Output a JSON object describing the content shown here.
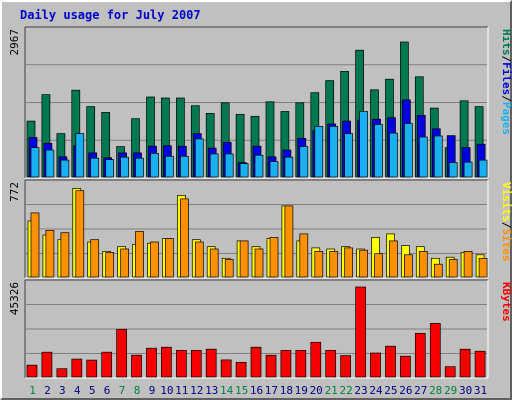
{
  "title": "Daily usage for July 2007",
  "colors": {
    "hits": "#007850",
    "files": "#0000e0",
    "pages": "#18b0f0",
    "visits": "#ffff00",
    "sites": "#ff9000",
    "kbytes": "#f80000",
    "weekend_day": "#008040",
    "weekday": "#000080"
  },
  "chart_data": [
    {
      "type": "bar",
      "name": "hits-files-pages",
      "categories": [
        "1",
        "2",
        "3",
        "4",
        "5",
        "6",
        "7",
        "8",
        "9",
        "10",
        "11",
        "12",
        "13",
        "14",
        "15",
        "16",
        "17",
        "18",
        "19",
        "20",
        "21",
        "22",
        "23",
        "24",
        "25",
        "26",
        "27",
        "28",
        "29",
        "30",
        "31"
      ],
      "weekend_days": [
        "1",
        "7",
        "8",
        "14",
        "15",
        "21",
        "22",
        "28",
        "29"
      ],
      "ymax_label": "2967",
      "ylim": [
        0,
        2967
      ],
      "grid": true,
      "series": [
        {
          "name": "Hits",
          "values": [
            1160,
            1710,
            900,
            1800,
            1460,
            1340,
            630,
            1210,
            1660,
            1640,
            1640,
            1480,
            1320,
            1540,
            1300,
            1260,
            1560,
            1360,
            1540,
            1750,
            2000,
            2190,
            2630,
            1810,
            2030,
            2800,
            2080,
            1430,
            610,
            1580,
            1460
          ]
        },
        {
          "name": "Files",
          "values": [
            820,
            700,
            420,
            650,
            500,
            400,
            500,
            500,
            640,
            650,
            640,
            900,
            600,
            720,
            300,
            640,
            420,
            560,
            800,
            960,
            1100,
            1160,
            1180,
            1200,
            1230,
            1600,
            1280,
            1000,
            860,
            610,
            680
          ]
        },
        {
          "name": "Pages",
          "values": [
            610,
            560,
            350,
            900,
            390,
            360,
            410,
            390,
            490,
            430,
            430,
            790,
            480,
            480,
            280,
            450,
            320,
            410,
            630,
            1050,
            1050,
            900,
            1360,
            1090,
            910,
            1110,
            830,
            850,
            300,
            310,
            350
          ]
        }
      ],
      "side_labels": [
        "Pages",
        "Files",
        "Hits"
      ]
    },
    {
      "type": "bar",
      "name": "visits-sites",
      "categories": [
        "1",
        "2",
        "3",
        "4",
        "5",
        "6",
        "7",
        "8",
        "9",
        "10",
        "11",
        "12",
        "13",
        "14",
        "15",
        "16",
        "17",
        "18",
        "19",
        "20",
        "21",
        "22",
        "23",
        "24",
        "25",
        "26",
        "27",
        "28",
        "29",
        "30",
        "31"
      ],
      "ymax_label": "772",
      "ylim": [
        0,
        772
      ],
      "grid": true,
      "series": [
        {
          "name": "Visits",
          "values": [
            480,
            360,
            320,
            760,
            300,
            220,
            260,
            280,
            290,
            330,
            700,
            320,
            260,
            160,
            310,
            260,
            330,
            610,
            310,
            250,
            240,
            260,
            240,
            340,
            370,
            270,
            260,
            160,
            170,
            210,
            190
          ]
        },
        {
          "name": "Sites",
          "values": [
            550,
            400,
            380,
            740,
            320,
            210,
            240,
            390,
            300,
            330,
            670,
            300,
            240,
            150,
            310,
            240,
            340,
            610,
            370,
            220,
            220,
            250,
            230,
            200,
            310,
            190,
            220,
            110,
            150,
            220,
            160
          ]
        }
      ],
      "side_labels": [
        "Sites",
        "Visits"
      ]
    },
    {
      "type": "bar",
      "name": "kbytes",
      "categories": [
        "1",
        "2",
        "3",
        "4",
        "5",
        "6",
        "7",
        "8",
        "9",
        "10",
        "11",
        "12",
        "13",
        "14",
        "15",
        "16",
        "17",
        "18",
        "19",
        "20",
        "21",
        "22",
        "23",
        "24",
        "25",
        "26",
        "27",
        "28",
        "29",
        "30",
        "31"
      ],
      "ymax_label": "45326",
      "ylim": [
        0,
        45326
      ],
      "grid": true,
      "series": [
        {
          "name": "KBytes",
          "values": [
            6000,
            12500,
            4200,
            9000,
            8500,
            12500,
            24000,
            11000,
            14500,
            15000,
            13400,
            13400,
            14000,
            8600,
            7400,
            15000,
            11000,
            13400,
            13400,
            17500,
            13400,
            10800,
            45326,
            12100,
            15500,
            10500,
            22000,
            27000,
            5200,
            14000,
            13000
          ]
        }
      ],
      "side_labels": [
        "KBytes"
      ]
    }
  ]
}
